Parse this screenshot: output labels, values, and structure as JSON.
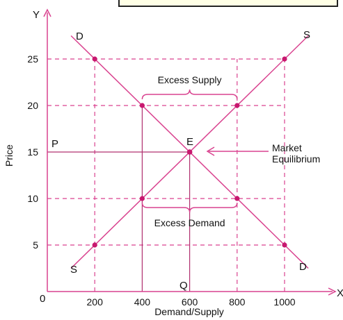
{
  "chart_data": {
    "type": "line",
    "xlabel": "Demand/Supply",
    "ylabel": "Price",
    "x_axis_letter": "X",
    "y_axis_letter": "Y",
    "origin_label": "0",
    "xlim": [
      0,
      1150
    ],
    "ylim": [
      0,
      29.5
    ],
    "x_ticks": [
      200,
      400,
      600,
      800,
      1000
    ],
    "y_ticks": [
      5,
      10,
      15,
      20,
      25
    ],
    "grid": "dashed guide lines at each tick",
    "series": [
      {
        "label_start": "D",
        "label_end": "D",
        "x": [
          200,
          400,
          600,
          800,
          1000
        ],
        "y": [
          25,
          20,
          15,
          10,
          5
        ],
        "extends": [
          [
            100,
            27.5
          ],
          [
            1100,
            2.5
          ]
        ]
      },
      {
        "label_start": "S",
        "label_end": "S",
        "x": [
          200,
          400,
          600,
          800,
          1000
        ],
        "y": [
          5,
          10,
          15,
          20,
          25
        ],
        "extends": [
          [
            100,
            2.5
          ],
          [
            1100,
            27.5
          ]
        ]
      }
    ],
    "equilibrium": {
      "label": "E",
      "x": 600,
      "y": 15,
      "price_label": "P",
      "quantity_label": "Q"
    },
    "annotations": {
      "excess_supply": {
        "text": "Excess Supply",
        "price": 20,
        "x_from": 400,
        "x_to": 800
      },
      "excess_demand": {
        "text": "Excess Demand",
        "price": 10,
        "x_from": 400,
        "x_to": 800
      },
      "market_equilibrium": {
        "lines": [
          "Market",
          "Equilibrium"
        ]
      }
    },
    "colors": {
      "curve": "#d9428f",
      "point": "#c8186f",
      "axis": "#d9428f",
      "guide": "#d9428f",
      "solid_guide": "#b0306f",
      "text": "#111111"
    }
  }
}
